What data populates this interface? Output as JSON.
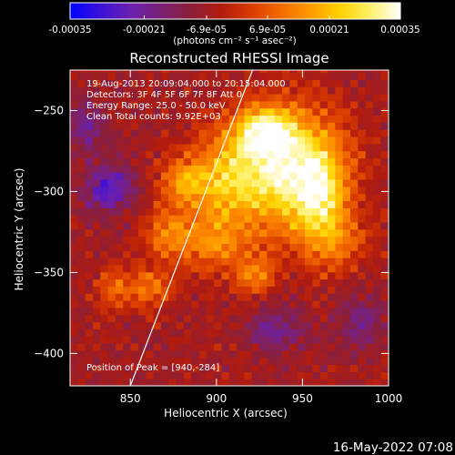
{
  "colorbar": {
    "ticks": [
      "-0.00035",
      "-0.00021",
      "-6.9e-05",
      "6.9e-05",
      "0.00021",
      "0.00035"
    ],
    "unit_label": "(photons cm⁻² s⁻¹ asec⁻²)",
    "colors": [
      "#0000ff",
      "#3a12d8",
      "#6a1fb0",
      "#7a2076",
      "#8a1f3a",
      "#b01b10",
      "#d83a00",
      "#f36a00",
      "#ff9a00",
      "#ffd200",
      "#fff16a",
      "#ffffff"
    ]
  },
  "chart_data": {
    "type": "heatmap",
    "title": "Reconstructed RHESSI Image",
    "xlabel": "Heliocentric X (arcsec)",
    "ylabel": "Heliocentric Y (arcsec)",
    "xlim": [
      815,
      1000
    ],
    "ylim": [
      -420,
      -225
    ],
    "x_ticks": [
      850,
      900,
      950,
      1000
    ],
    "y_ticks": [
      -250,
      -300,
      -350,
      -400
    ],
    "x_tick_labels": [
      "850",
      "900",
      "950",
      "1000"
    ],
    "y_tick_labels": [
      "−250",
      "−300",
      "−350",
      "−400"
    ],
    "colorbar_range": [
      -0.00035,
      0.00035
    ],
    "limb_line": {
      "x": [
        850,
        921
      ],
      "y": [
        -420,
        -225
      ]
    },
    "annotations": [
      "19-Aug-2013 20:09:04.000 to 20:15:04.000",
      "Detectors: 3F 4F 5F 6F 7F 8F Att 0",
      "Energy Range: 25.0 - 50.0 keV",
      "Clean    Total counts: 9.92E+03",
      "Position of Peak = [940,-284]"
    ],
    "peak": {
      "x": 940,
      "y": -284
    },
    "blobs": [
      {
        "x": 942,
        "y": -286,
        "sx": 22,
        "sy": 26,
        "a": 1.0
      },
      {
        "x": 928,
        "y": -262,
        "sx": 12,
        "sy": 10,
        "a": 0.75
      },
      {
        "x": 905,
        "y": -290,
        "sx": 16,
        "sy": 18,
        "a": 0.6
      },
      {
        "x": 895,
        "y": -330,
        "sx": 18,
        "sy": 14,
        "a": 0.5
      },
      {
        "x": 880,
        "y": -295,
        "sx": 9,
        "sy": 10,
        "a": 0.45
      },
      {
        "x": 870,
        "y": -325,
        "sx": 8,
        "sy": 10,
        "a": 0.35
      },
      {
        "x": 860,
        "y": -360,
        "sx": 9,
        "sy": 9,
        "a": 0.45
      },
      {
        "x": 840,
        "y": -360,
        "sx": 7,
        "sy": 9,
        "a": 0.4
      },
      {
        "x": 968,
        "y": -330,
        "sx": 14,
        "sy": 14,
        "a": 0.4
      },
      {
        "x": 922,
        "y": -352,
        "sx": 9,
        "sy": 9,
        "a": 0.4
      },
      {
        "x": 960,
        "y": -300,
        "sx": 10,
        "sy": 18,
        "a": 0.55
      },
      {
        "x": 838,
        "y": -298,
        "sx": 10,
        "sy": 10,
        "a": -0.6
      },
      {
        "x": 825,
        "y": -260,
        "sx": 8,
        "sy": 12,
        "a": -0.35
      },
      {
        "x": 935,
        "y": -385,
        "sx": 12,
        "sy": 10,
        "a": -0.35
      },
      {
        "x": 985,
        "y": -380,
        "sx": 10,
        "sy": 12,
        "a": -0.3
      }
    ]
  },
  "footer": {
    "timestamp": "16-May-2022 07:08"
  }
}
